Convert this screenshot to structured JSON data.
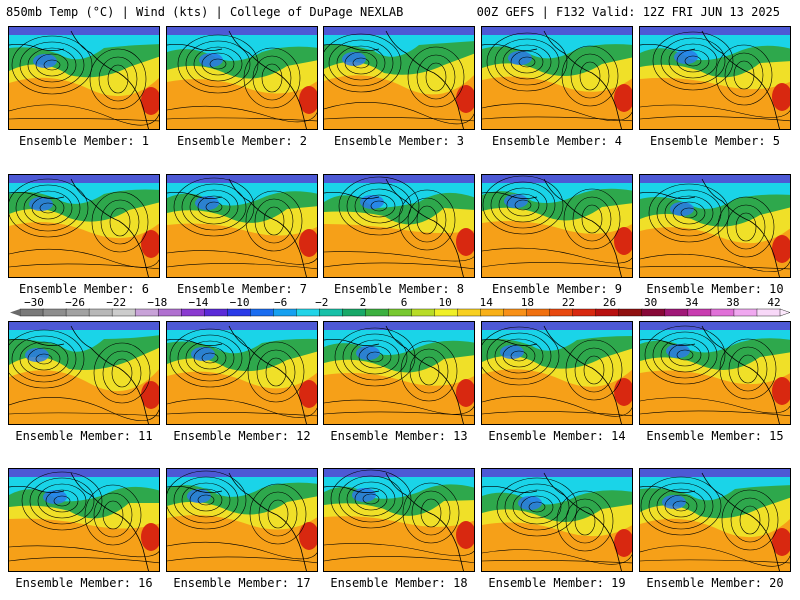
{
  "header": {
    "left": "850mb Temp (°C) | Wind (kts) | College of DuPage NEXLAB",
    "right": "00Z GEFS | F132 Valid: 12Z FRI JUN 13 2025"
  },
  "member_label_prefix": "Ensemble Member:",
  "members": [
    1,
    2,
    3,
    4,
    5,
    6,
    7,
    8,
    9,
    10,
    11,
    12,
    13,
    14,
    15,
    16,
    17,
    18,
    19,
    20
  ],
  "colorbar": {
    "labels": [
      "−30",
      "−26",
      "−22",
      "−18",
      "−14",
      "−10",
      "−6",
      "−2",
      "2",
      "6",
      "10",
      "14",
      "18",
      "22",
      "26",
      "30",
      "34",
      "38",
      "42"
    ],
    "colors": [
      "#7a7a7a",
      "#8e8e8e",
      "#a2a2a2",
      "#b8b8b8",
      "#cccccc",
      "#c8a2d8",
      "#b070d0",
      "#8a3ad0",
      "#5a2ad8",
      "#2a3ae8",
      "#1a6cf0",
      "#16a0f0",
      "#22d4e8",
      "#18c0a8",
      "#18a868",
      "#3cb040",
      "#78c830",
      "#b8dc28",
      "#f0f028",
      "#f8d020",
      "#f8b018",
      "#f89018",
      "#f07010",
      "#e84810",
      "#d82810",
      "#b81010",
      "#901010",
      "#880838",
      "#a01878",
      "#c83cb0",
      "#e070d8",
      "#f0a8f0",
      "#f8d8f8"
    ]
  },
  "colors": {
    "ocean": "#f6a018",
    "land_green": "#2ea84c",
    "cold_cyan": "#1ad4e8",
    "cold_blue": "#2a7ae8",
    "hot_red": "#d82810",
    "yellow": "#f0e028"
  }
}
